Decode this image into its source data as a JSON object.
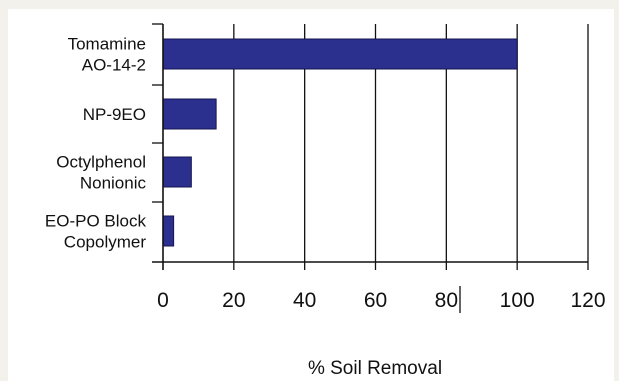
{
  "chart_data": {
    "type": "bar",
    "orientation": "horizontal",
    "categories": [
      [
        "Tomamine",
        "AO-14-2"
      ],
      [
        "NP-9EO"
      ],
      [
        "Octylphenol",
        "Nonionic"
      ],
      [
        "EO-PO Block",
        "Copolymer"
      ]
    ],
    "values": [
      100,
      15,
      8,
      3
    ],
    "xlabel": "% Soil Removal",
    "ylabel": "",
    "xlim": [
      0,
      120
    ],
    "xticks": [
      "0",
      "20",
      "40",
      "60",
      "80",
      "100",
      "120"
    ],
    "grid": "vertical",
    "bar_color": "#2b2f8e"
  }
}
